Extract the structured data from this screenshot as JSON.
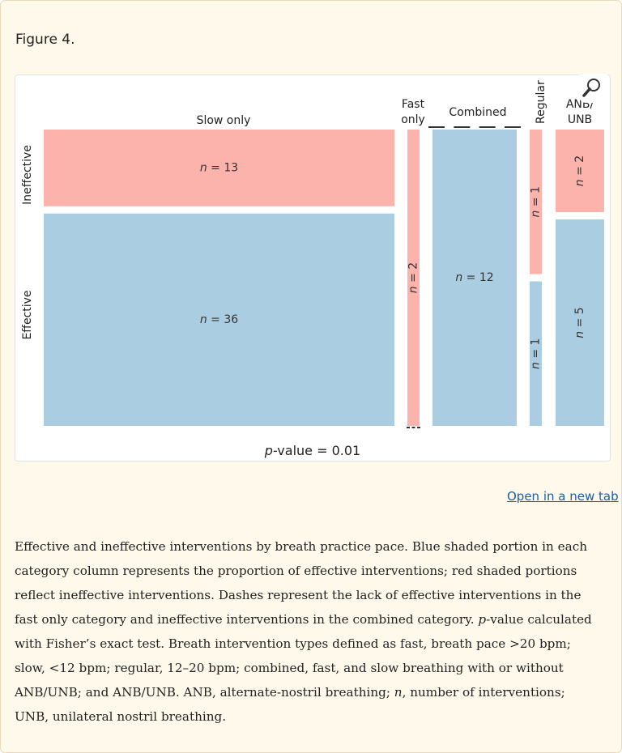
{
  "figure_title": "Figure 4.",
  "open_link": "Open in a new tab",
  "caption": {
    "part1": "Effective and ineffective interventions by breath practice pace. Blue shaded portion in each category column represents the proportion of effective interventions; red shaded portions reflect ineffective interventions. Dashes represent the lack of effective interventions in the fast only category and ineffective interventions in the combined category. ",
    "p_letter": "p",
    "part2": "-value calculated with Fisher’s exact test. Breath intervention types defined as fast, breath pace >20 bpm; slow, <12 bpm; regular, 12–20 bpm; combined, fast, and slow breathing with or without ANB/UNB; and ANB/UNB. ANB, alternate-nostril breathing; ",
    "n_letter": "n",
    "part3": ", number of interventions; UNB, unilateral nostril breathing."
  },
  "colors": {
    "effective": "#abcde1",
    "ineffective": "#fcb3ac",
    "dash": "#333333"
  },
  "icons": {
    "zoom": "magnifier-icon"
  },
  "chart_data": {
    "type": "mosaic",
    "row_labels": [
      "Ineffective",
      "Effective"
    ],
    "annotation": "p-value = 0.01",
    "categories": [
      {
        "name": "Slow only",
        "label_lines": [
          "Slow only"
        ],
        "ineffective": 13,
        "effective": 36,
        "ineffective_label": "n = 13",
        "effective_label": "n = 36"
      },
      {
        "name": "Fast only",
        "label_lines": [
          "Fast",
          "only"
        ],
        "ineffective": 2,
        "effective": 0,
        "ineffective_label": "n = 2",
        "effective_label": ""
      },
      {
        "name": "Combined",
        "label_lines": [
          "Combined"
        ],
        "ineffective": 0,
        "effective": 12,
        "ineffective_label": "",
        "effective_label": "n = 12"
      },
      {
        "name": "Regular",
        "label_lines": [
          "Regular"
        ],
        "ineffective": 1,
        "effective": 1,
        "ineffective_label": "n = 1",
        "effective_label": "n = 1"
      },
      {
        "name": "ANB/UNB",
        "label_lines": [
          "ANB/",
          "UNB"
        ],
        "ineffective": 2,
        "effective": 5,
        "ineffective_label": "n = 2",
        "effective_label": "n = 5"
      }
    ]
  }
}
